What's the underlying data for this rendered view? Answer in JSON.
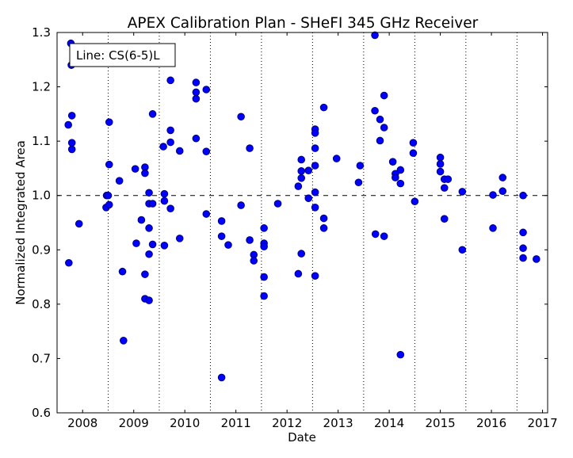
{
  "chart_data": {
    "type": "scatter",
    "title": "APEX Calibration Plan - SHeFI 345 GHz Receiver",
    "xlabel": "Date",
    "ylabel": "Normalized Integrated Area",
    "legend_text": "Line: CS(6-5)L",
    "legend_placement": "top-left",
    "xlim": [
      2007.5,
      2017.1
    ],
    "ylim": [
      0.6,
      1.3
    ],
    "x_ticks": [
      2008,
      2009,
      2010,
      2011,
      2012,
      2013,
      2014,
      2015,
      2016,
      2017
    ],
    "y_ticks": [
      0.6,
      0.7,
      0.8,
      0.9,
      1.0,
      1.1,
      1.2,
      1.3
    ],
    "y_tick_labels": [
      "0.6",
      "0.7",
      "0.8",
      "0.9",
      "1.0",
      "1.1",
      "1.2",
      "1.3"
    ],
    "reference_line": 1.0,
    "vertical_grid_x": [
      2008.5,
      2009.5,
      2010.5,
      2011.5,
      2012.5,
      2013.5,
      2014.5,
      2015.5,
      2016.5
    ],
    "marker_color": "#0000ff",
    "marker_edge_color": "#000080",
    "series": [
      {
        "points": [
          [
            2007.72,
            1.13
          ],
          [
            2007.73,
            0.876
          ],
          [
            2007.77,
            1.28
          ],
          [
            2007.78,
            1.24
          ],
          [
            2007.79,
            1.147
          ],
          [
            2007.79,
            1.097
          ],
          [
            2007.79,
            1.085
          ],
          [
            2007.93,
            0.948
          ],
          [
            2008.46,
            0.978
          ],
          [
            2008.47,
            1.0
          ],
          [
            2008.5,
            1.0
          ],
          [
            2008.52,
            1.135
          ],
          [
            2008.52,
            1.057
          ],
          [
            2008.52,
            0.983
          ],
          [
            2008.72,
            1.027
          ],
          [
            2008.78,
            0.86
          ],
          [
            2008.8,
            0.733
          ],
          [
            2009.03,
            1.049
          ],
          [
            2009.05,
            0.912
          ],
          [
            2009.15,
            0.955
          ],
          [
            2009.22,
            1.052
          ],
          [
            2009.22,
            1.041
          ],
          [
            2009.22,
            0.855
          ],
          [
            2009.22,
            0.81
          ],
          [
            2009.3,
            1.005
          ],
          [
            2009.3,
            0.985
          ],
          [
            2009.3,
            0.94
          ],
          [
            2009.3,
            0.892
          ],
          [
            2009.3,
            0.807
          ],
          [
            2009.37,
            1.15
          ],
          [
            2009.37,
            0.985
          ],
          [
            2009.37,
            0.91
          ],
          [
            2009.58,
            1.09
          ],
          [
            2009.6,
            1.003
          ],
          [
            2009.6,
            0.99
          ],
          [
            2009.6,
            0.908
          ],
          [
            2009.72,
            1.212
          ],
          [
            2009.72,
            1.12
          ],
          [
            2009.72,
            1.098
          ],
          [
            2009.72,
            0.976
          ],
          [
            2009.9,
            1.082
          ],
          [
            2009.9,
            0.921
          ],
          [
            2010.22,
            1.208
          ],
          [
            2010.22,
            1.19
          ],
          [
            2010.22,
            1.178
          ],
          [
            2010.22,
            1.105
          ],
          [
            2010.42,
            1.195
          ],
          [
            2010.42,
            1.081
          ],
          [
            2010.42,
            0.966
          ],
          [
            2010.72,
            0.953
          ],
          [
            2010.72,
            0.925
          ],
          [
            2010.72,
            0.665
          ],
          [
            2010.85,
            0.909
          ],
          [
            2011.1,
            1.145
          ],
          [
            2011.1,
            0.982
          ],
          [
            2011.27,
            1.087
          ],
          [
            2011.27,
            0.918
          ],
          [
            2011.35,
            0.891
          ],
          [
            2011.35,
            0.88
          ],
          [
            2011.55,
            0.94
          ],
          [
            2011.55,
            0.912
          ],
          [
            2011.55,
            0.906
          ],
          [
            2011.55,
            0.85
          ],
          [
            2011.55,
            0.815
          ],
          [
            2011.82,
            0.985
          ],
          [
            2012.22,
            1.017
          ],
          [
            2012.22,
            0.856
          ],
          [
            2012.28,
            1.066
          ],
          [
            2012.28,
            1.045
          ],
          [
            2012.28,
            1.032
          ],
          [
            2012.28,
            0.893
          ],
          [
            2012.42,
            1.046
          ],
          [
            2012.42,
            0.995
          ],
          [
            2012.55,
            1.122
          ],
          [
            2012.55,
            1.115
          ],
          [
            2012.55,
            1.087
          ],
          [
            2012.55,
            1.055
          ],
          [
            2012.55,
            1.006
          ],
          [
            2012.55,
            0.978
          ],
          [
            2012.55,
            0.852
          ],
          [
            2012.72,
            1.162
          ],
          [
            2012.72,
            0.958
          ],
          [
            2012.72,
            0.94
          ],
          [
            2012.97,
            1.068
          ],
          [
            2013.4,
            1.024
          ],
          [
            2013.43,
            1.055
          ],
          [
            2013.72,
            1.295
          ],
          [
            2013.72,
            1.156
          ],
          [
            2013.73,
            0.929
          ],
          [
            2013.82,
            1.14
          ],
          [
            2013.82,
            1.101
          ],
          [
            2013.9,
            1.184
          ],
          [
            2013.9,
            1.125
          ],
          [
            2013.9,
            0.925
          ],
          [
            2014.07,
            1.062
          ],
          [
            2014.12,
            1.04
          ],
          [
            2014.12,
            1.033
          ],
          [
            2014.22,
            1.047
          ],
          [
            2014.22,
            1.022
          ],
          [
            2014.22,
            0.707
          ],
          [
            2014.47,
            1.097
          ],
          [
            2014.47,
            1.078
          ],
          [
            2014.5,
            0.989
          ],
          [
            2015.0,
            1.07
          ],
          [
            2015.0,
            1.058
          ],
          [
            2015.0,
            1.044
          ],
          [
            2015.08,
            1.03
          ],
          [
            2015.08,
            1.014
          ],
          [
            2015.08,
            0.957
          ],
          [
            2015.15,
            1.03
          ],
          [
            2015.43,
            1.007
          ],
          [
            2015.43,
            0.9
          ],
          [
            2016.03,
            1.001
          ],
          [
            2016.03,
            0.94
          ],
          [
            2016.22,
            1.033
          ],
          [
            2016.22,
            1.008
          ],
          [
            2016.62,
            1.0
          ],
          [
            2016.62,
            0.932
          ],
          [
            2016.62,
            0.903
          ],
          [
            2016.62,
            0.885
          ],
          [
            2016.88,
            0.883
          ]
        ]
      }
    ]
  }
}
